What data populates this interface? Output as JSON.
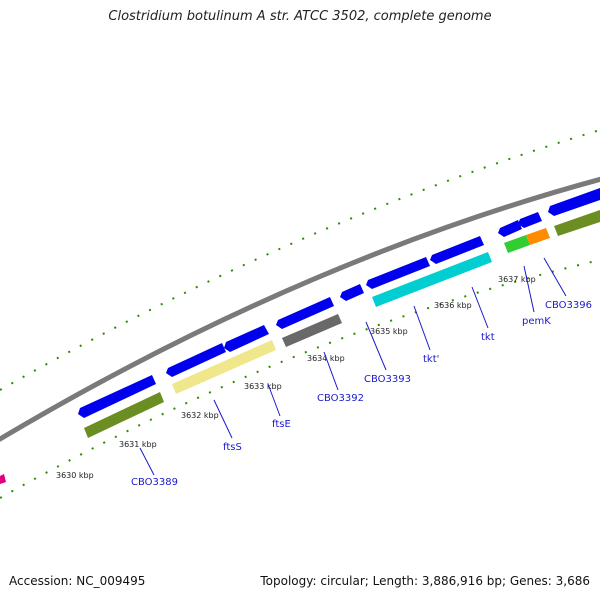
{
  "title": "Clostridium botulinum A str. ATCC 3502, complete genome",
  "footer": {
    "accession": "Accession: NC_009495",
    "summary": "Topology: circular; Length: 3,886,916 bp; Genes: 3,686"
  },
  "tick_labels": [
    "3630 kbp",
    "3631 kbp",
    "3632 kbp",
    "3633 kbp",
    "3634 kbp",
    "3635 kbp",
    "3636 kbp",
    "3637 kbp"
  ],
  "genes": [
    {
      "name": "CBO3389",
      "color": "#6b8e23"
    },
    {
      "name": "ftsS",
      "color": "#f0e68c"
    },
    {
      "name": "ftsE",
      "color": "#f0e68c"
    },
    {
      "name": "CBO3392",
      "color": "#696969"
    },
    {
      "name": "CBO3393",
      "color": "#00ced1"
    },
    {
      "name": "tkt'",
      "color": "#00ced1"
    },
    {
      "name": "tkt",
      "color": "#00ced1"
    },
    {
      "name": "pemK",
      "color": "#ff8c00"
    },
    {
      "name": "CBO3396",
      "color": "#6b8e23"
    }
  ],
  "colors": {
    "backbone": "#808080",
    "cds_arrow": "#0000ee",
    "tick_mark": "#2e8b00",
    "label_text": "#1a1acc",
    "bright_green": "#32cd32",
    "magenta": "#e0007f"
  }
}
